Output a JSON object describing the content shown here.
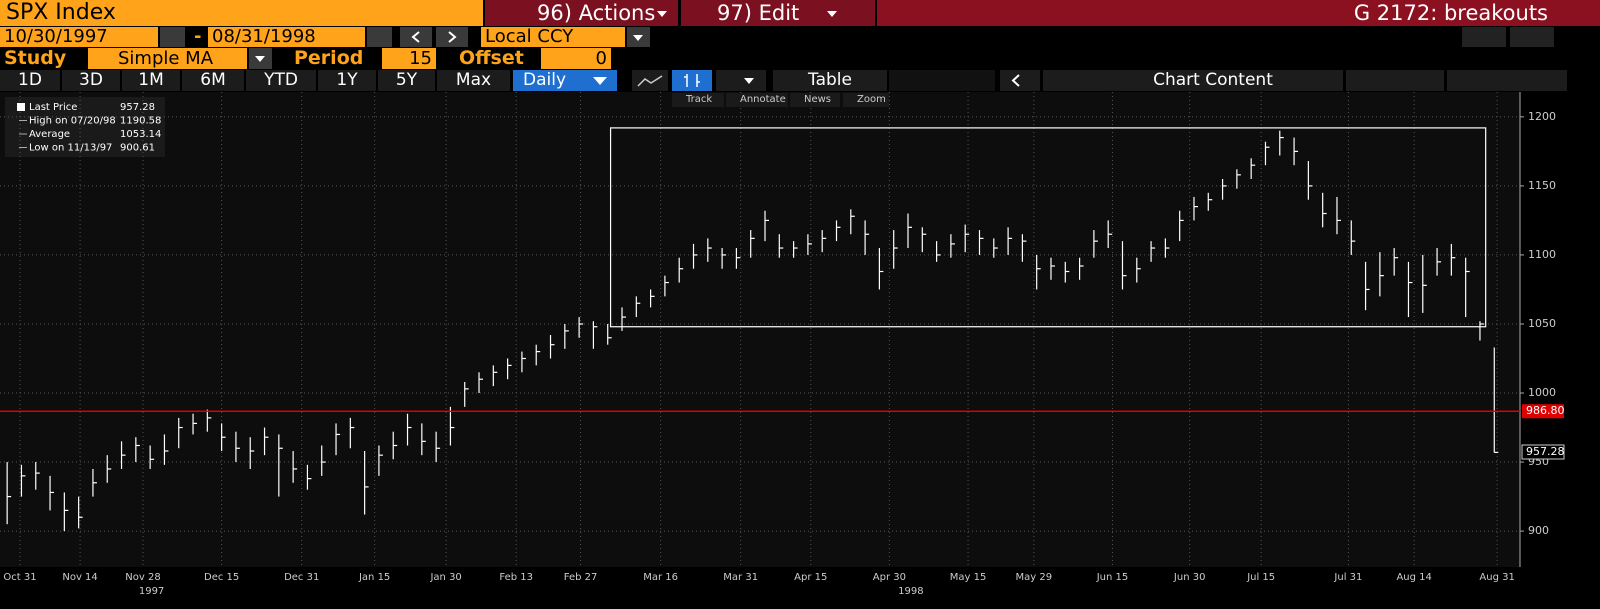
{
  "ui": {
    "security": "SPX Index",
    "actions": "96) Actions",
    "edit": "97) Edit",
    "page": "G 2172: breakouts",
    "start_date": "10/30/1997",
    "dash": "-",
    "end_date": "08/31/1998",
    "currency": "Local CCY",
    "study_label": "Study",
    "study": "Simple MA",
    "period_label": "Period",
    "period": 15,
    "offset_label": "Offset",
    "offset": 0,
    "ranges": [
      "1D",
      "3D",
      "1M",
      "6M",
      "YTD",
      "1Y",
      "5Y",
      "Max"
    ],
    "frequency": "Daily",
    "table": "Table",
    "chart_content": "Chart Content",
    "tools": [
      "Track",
      "Annotate",
      "News",
      "Zoom"
    ]
  },
  "chart_data": {
    "type": "ohlc",
    "color": "#ffffff",
    "stats": [
      {
        "label": "Last Price",
        "value": 957.28
      },
      {
        "label": "High on 07/20/98",
        "value": 1190.58
      },
      {
        "label": "Average",
        "value": 1053.14
      },
      {
        "label": "Low on 11/13/97",
        "value": 900.61
      }
    ],
    "high": [
      950,
      948,
      950,
      940,
      928,
      925,
      945,
      955,
      965,
      968,
      962,
      970,
      982,
      985,
      988,
      978,
      972,
      968,
      975,
      970,
      958,
      948,
      962,
      978,
      982,
      958,
      962,
      972,
      985,
      978,
      972,
      990,
      1008,
      1015,
      1020,
      1025,
      1030,
      1035,
      1042,
      1050,
      1055,
      1052,
      1050,
      1062,
      1070,
      1075,
      1085,
      1098,
      1108,
      1112,
      1105,
      1105,
      1118,
      1132,
      1115,
      1110,
      1115,
      1118,
      1125,
      1133,
      1125,
      1105,
      1118,
      1130,
      1120,
      1110,
      1115,
      1122,
      1118,
      1112,
      1120,
      1115,
      1100,
      1098,
      1095,
      1098,
      1118,
      1125,
      1110,
      1098,
      1110,
      1112,
      1132,
      1142,
      1145,
      1155,
      1162,
      1170,
      1182,
      1190,
      1185,
      1168,
      1145,
      1142,
      1125,
      1095,
      1102,
      1105,
      1095,
      1100,
      1105,
      1108,
      1098,
      1052,
      1033
    ],
    "low": [
      905,
      925,
      930,
      915,
      900,
      902,
      925,
      935,
      945,
      950,
      945,
      948,
      960,
      970,
      972,
      958,
      950,
      945,
      955,
      925,
      935,
      930,
      940,
      955,
      960,
      912,
      940,
      952,
      962,
      955,
      950,
      962,
      990,
      1000,
      1005,
      1010,
      1015,
      1020,
      1025,
      1032,
      1040,
      1032,
      1035,
      1045,
      1055,
      1062,
      1070,
      1080,
      1090,
      1095,
      1090,
      1090,
      1098,
      1110,
      1098,
      1098,
      1100,
      1102,
      1110,
      1115,
      1100,
      1075,
      1090,
      1105,
      1102,
      1095,
      1098,
      1102,
      1100,
      1098,
      1100,
      1095,
      1075,
      1082,
      1080,
      1082,
      1098,
      1105,
      1075,
      1080,
      1095,
      1098,
      1110,
      1125,
      1132,
      1140,
      1148,
      1155,
      1165,
      1172,
      1165,
      1140,
      1120,
      1115,
      1100,
      1060,
      1070,
      1085,
      1055,
      1058,
      1085,
      1085,
      1055,
      1038,
      957
    ],
    "close": [
      925,
      940,
      942,
      928,
      915,
      910,
      935,
      945,
      955,
      962,
      952,
      958,
      975,
      978,
      982,
      968,
      960,
      958,
      968,
      960,
      945,
      938,
      950,
      970,
      975,
      932,
      955,
      962,
      975,
      965,
      960,
      975,
      1003,
      1010,
      1015,
      1020,
      1025,
      1030,
      1035,
      1045,
      1050,
      1048,
      1040,
      1055,
      1065,
      1070,
      1080,
      1090,
      1100,
      1105,
      1100,
      1098,
      1112,
      1125,
      1105,
      1105,
      1108,
      1112,
      1120,
      1128,
      1115,
      1088,
      1105,
      1120,
      1115,
      1100,
      1108,
      1115,
      1112,
      1105,
      1112,
      1110,
      1090,
      1092,
      1088,
      1092,
      1110,
      1115,
      1085,
      1090,
      1105,
      1105,
      1125,
      1135,
      1140,
      1150,
      1158,
      1165,
      1178,
      1185,
      1175,
      1150,
      1130,
      1125,
      1110,
      1075,
      1085,
      1098,
      1080,
      1078,
      1095,
      1098,
      1088,
      1050,
      957
    ],
    "xlim": [
      -0.5,
      105.8
    ],
    "xticks": [
      {
        "value": 0.9,
        "label": "Oct 31"
      },
      {
        "value": 5.1,
        "label": "Nov 14"
      },
      {
        "value": 9.5,
        "label": "Nov 28"
      },
      {
        "value": 15.0,
        "label": "Dec 15"
      },
      {
        "value": 20.6,
        "label": "Dec 31"
      },
      {
        "value": 25.7,
        "label": "Jan 15"
      },
      {
        "value": 30.7,
        "label": "Jan 30"
      },
      {
        "value": 35.6,
        "label": "Feb 13"
      },
      {
        "value": 40.1,
        "label": "Feb 27"
      },
      {
        "value": 45.7,
        "label": "Mar 16"
      },
      {
        "value": 51.3,
        "label": "Mar 31"
      },
      {
        "value": 56.2,
        "label": "Apr 15"
      },
      {
        "value": 61.7,
        "label": "Apr 30"
      },
      {
        "value": 67.2,
        "label": "May 15"
      },
      {
        "value": 71.8,
        "label": "May 29"
      },
      {
        "value": 77.3,
        "label": "Jun 15"
      },
      {
        "value": 82.7,
        "label": "Jun 30"
      },
      {
        "value": 87.7,
        "label": "Jul 15"
      },
      {
        "value": 93.8,
        "label": "Jul 31"
      },
      {
        "value": 98.4,
        "label": "Aug 14"
      },
      {
        "value": 104.2,
        "label": "Aug 31"
      }
    ],
    "years": [
      {
        "value": 10.1,
        "label": "1997"
      },
      {
        "value": 63.2,
        "label": "1998"
      }
    ],
    "ylim": [
      874,
      1218
    ],
    "yticks": [
      900,
      950,
      1000,
      1050,
      1100,
      1150,
      1200
    ],
    "grid": true,
    "hline": {
      "value": 986.8,
      "label": "986.80",
      "color": "#e00000"
    },
    "box": {
      "x": [
        42.2,
        103.4
      ],
      "y": [
        1048,
        1192
      ]
    }
  }
}
